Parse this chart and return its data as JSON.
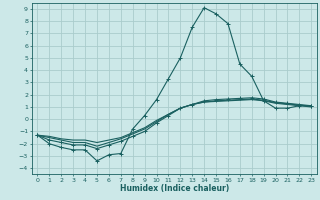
{
  "xlabel": "Humidex (Indice chaleur)",
  "bg_color": "#cce8e8",
  "grid_color": "#aacccc",
  "line_color": "#1a6060",
  "xlim": [
    -0.5,
    23.5
  ],
  "ylim": [
    -4.5,
    9.5
  ],
  "xticks": [
    0,
    1,
    2,
    3,
    4,
    5,
    6,
    7,
    8,
    9,
    10,
    11,
    12,
    13,
    14,
    15,
    16,
    17,
    18,
    19,
    20,
    21,
    22,
    23
  ],
  "yticks": [
    -4,
    -3,
    -2,
    -1,
    0,
    1,
    2,
    3,
    4,
    5,
    6,
    7,
    8,
    9
  ],
  "line1_x": [
    0,
    1,
    2,
    3,
    4,
    5,
    6,
    7,
    8,
    9,
    10,
    11,
    12,
    13,
    14,
    15,
    16,
    17,
    18,
    19,
    20,
    21,
    22,
    23
  ],
  "line1_y": [
    -1.3,
    -2.0,
    -2.3,
    -2.5,
    -2.5,
    -3.4,
    -2.9,
    -2.8,
    -0.8,
    0.3,
    1.6,
    3.3,
    5.0,
    7.5,
    9.1,
    8.6,
    7.8,
    4.5,
    3.5,
    1.5,
    0.9,
    0.9,
    1.1,
    1.1
  ],
  "line2_x": [
    0,
    1,
    2,
    3,
    4,
    5,
    6,
    7,
    8,
    9,
    10,
    11,
    12,
    13,
    14,
    15,
    16,
    17,
    18,
    19,
    20,
    21,
    22,
    23
  ],
  "line2_y": [
    -1.3,
    -1.7,
    -1.9,
    -2.1,
    -2.1,
    -2.4,
    -2.1,
    -1.8,
    -1.4,
    -1.0,
    -0.3,
    0.3,
    0.9,
    1.2,
    1.5,
    1.6,
    1.65,
    1.7,
    1.75,
    1.65,
    1.4,
    1.3,
    1.2,
    1.1
  ],
  "line3_x": [
    0,
    1,
    2,
    3,
    4,
    5,
    6,
    7,
    8,
    9,
    10,
    11,
    12,
    13,
    14,
    15,
    16,
    17,
    18,
    19,
    20,
    21,
    22,
    23
  ],
  "line3_y": [
    -1.3,
    -1.5,
    -1.7,
    -1.9,
    -1.9,
    -2.2,
    -1.9,
    -1.6,
    -1.2,
    -0.8,
    -0.2,
    0.4,
    0.9,
    1.2,
    1.4,
    1.5,
    1.55,
    1.6,
    1.65,
    1.55,
    1.35,
    1.25,
    1.15,
    1.05
  ],
  "line4_x": [
    0,
    1,
    2,
    3,
    4,
    5,
    6,
    7,
    8,
    9,
    10,
    11,
    12,
    13,
    14,
    15,
    16,
    17,
    18,
    19,
    20,
    21,
    22,
    23
  ],
  "line4_y": [
    -1.3,
    -1.4,
    -1.6,
    -1.7,
    -1.7,
    -1.9,
    -1.7,
    -1.5,
    -1.1,
    -0.7,
    -0.1,
    0.4,
    0.9,
    1.2,
    1.4,
    1.45,
    1.5,
    1.55,
    1.6,
    1.5,
    1.3,
    1.2,
    1.1,
    1.0
  ]
}
